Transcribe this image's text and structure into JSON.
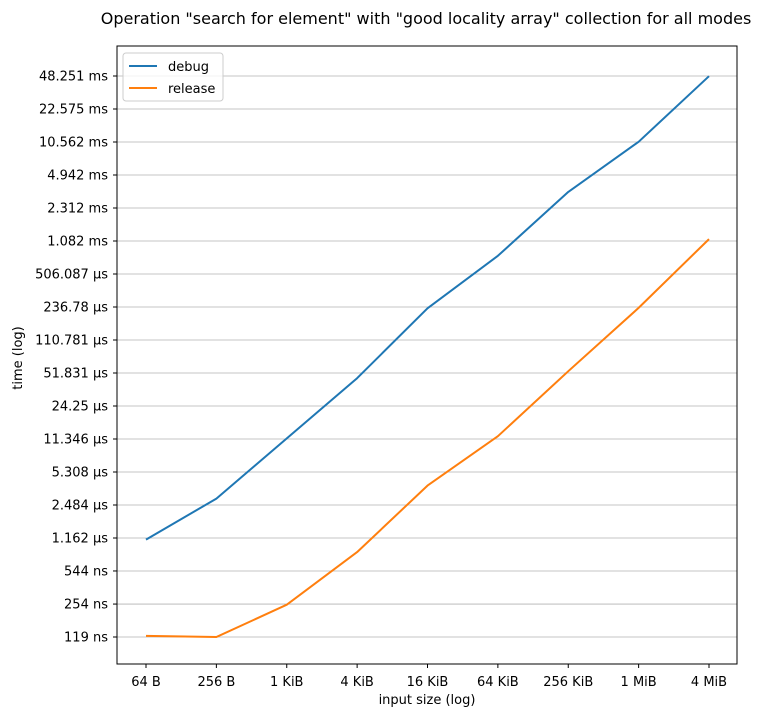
{
  "chart_data": {
    "type": "line",
    "title": "Operation \"search for element\" with \"good locality array\" collection for all modes",
    "xlabel": "input size (log)",
    "ylabel": "time (log)",
    "x_scale": "log",
    "y_scale": "log",
    "grid": "horizontal",
    "legend_position": "top-left",
    "categories": [
      "64 B",
      "256 B",
      "1 KiB",
      "4 KiB",
      "16 KiB",
      "64 KiB",
      "256 KiB",
      "1 MiB",
      "4 MiB"
    ],
    "y_ticks": [
      "119 ns",
      "254 ns",
      "544 ns",
      "1.162 µs",
      "2.484 µs",
      "5.308 µs",
      "11.346 µs",
      "24.25 µs",
      "51.831 µs",
      "110.781 µs",
      "236.78 µs",
      "506.087 µs",
      "1.082 ms",
      "2.312 ms",
      "4.942 ms",
      "10.562 ms",
      "22.575 ms",
      "48.251 ms"
    ],
    "y_tick_values_ns": [
      119,
      254,
      544,
      1162,
      2484,
      5308,
      11346,
      24250,
      51831,
      110781,
      236780,
      506087,
      1082000,
      2312000,
      4942000,
      10562000,
      22575000,
      48251000
    ],
    "series": [
      {
        "name": "debug",
        "color": "#1f77b4",
        "values_ns": [
          1120,
          2880,
          11500,
          46000,
          230000,
          770000,
          3350000,
          10600000,
          48000000
        ]
      },
      {
        "name": "release",
        "color": "#ff7f0e",
        "values_ns": [
          122,
          119,
          250,
          840,
          3880,
          12100,
          54000,
          232000,
          1130000
        ]
      }
    ]
  }
}
